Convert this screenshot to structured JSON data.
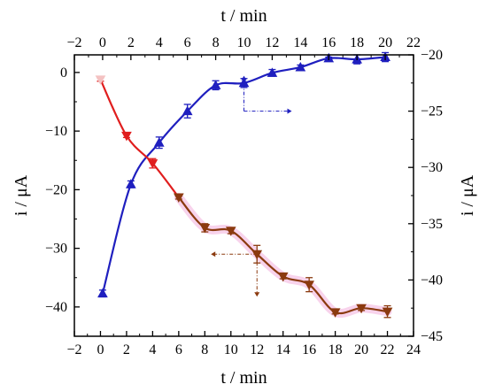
{
  "chart_data": {
    "type": "line",
    "axes": {
      "bottom": {
        "label": "t / min",
        "range": [
          -2,
          24
        ],
        "ticks": [
          -2,
          0,
          2,
          4,
          6,
          8,
          10,
          12,
          14,
          16,
          18,
          20,
          22,
          24
        ]
      },
      "top": {
        "label": "t / min",
        "range": [
          -2,
          22
        ],
        "ticks": [
          -2,
          0,
          2,
          4,
          6,
          8,
          10,
          12,
          14,
          16,
          18,
          20,
          22
        ]
      },
      "left": {
        "label": "i / μA",
        "range": [
          -45,
          3
        ],
        "ticks": [
          0,
          -10,
          -20,
          -30,
          -40
        ]
      },
      "right": {
        "label": "i / μA",
        "range": [
          -45,
          -20
        ],
        "ticks": [
          -20,
          -25,
          -30,
          -35,
          -40,
          -45
        ]
      }
    },
    "series": [
      {
        "x_axis": "top",
        "y_axis": "right",
        "color": "#1f1fbf",
        "marker": "triangle-up",
        "arrow": "right",
        "points": [
          {
            "x": 0,
            "y": -41.2,
            "err": 0.3
          },
          {
            "x": 2,
            "y": -31.5,
            "err": 0.3
          },
          {
            "x": 4,
            "y": -27.8,
            "err": 0.5
          },
          {
            "x": 6,
            "y": -25.0,
            "err": 0.6
          },
          {
            "x": 8,
            "y": -22.7,
            "err": 0.4
          },
          {
            "x": 10,
            "y": -22.5,
            "err": 0.4
          },
          {
            "x": 12,
            "y": -21.6,
            "err": 0.3
          },
          {
            "x": 14,
            "y": -21.1,
            "err": 0.2
          },
          {
            "x": 16,
            "y": -20.3,
            "err": 0.1
          },
          {
            "x": 18,
            "y": -20.4,
            "err": 0.4
          },
          {
            "x": 20,
            "y": -20.2,
            "err": 0.4
          }
        ]
      },
      {
        "x_axis": "bottom",
        "y_axis": "left",
        "color": "#8b3a0f",
        "segment_color": "#e01e1e",
        "marker": "triangle-down",
        "arrow": "left",
        "points": [
          {
            "x": 0,
            "y": -1.2,
            "err": 0.3
          },
          {
            "x": 2,
            "y": -10.8,
            "err": 0.3
          },
          {
            "x": 4,
            "y": -15.5,
            "err": 0.8
          },
          {
            "x": 6,
            "y": -21.3,
            "err": 0.3
          },
          {
            "x": 8,
            "y": -26.5,
            "err": 0.7
          },
          {
            "x": 10,
            "y": -27.0,
            "err": 0.5
          },
          {
            "x": 12,
            "y": -31.0,
            "err": 1.5
          },
          {
            "x": 14,
            "y": -34.8,
            "err": 0.4
          },
          {
            "x": 16,
            "y": -36.2,
            "err": 1.2
          },
          {
            "x": 18,
            "y": -40.9,
            "err": 0.3
          },
          {
            "x": 20,
            "y": -40.2,
            "err": 0.4
          },
          {
            "x": 22,
            "y": -40.8,
            "err": 1.0
          }
        ]
      }
    ]
  }
}
